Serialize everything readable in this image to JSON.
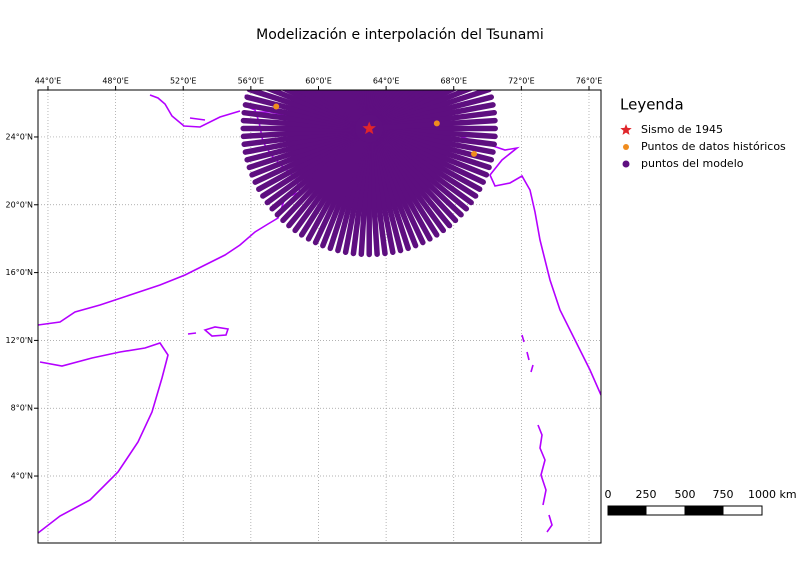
{
  "map": {
    "title": "Modelización e interpolación del Tsunami",
    "xlim": [
      43.41,
      76.71
    ],
    "ylim": [
      0.05,
      26.77
    ],
    "lon_ticks": [
      {
        "value": 44,
        "label": "44°0'E"
      },
      {
        "value": 48,
        "label": "48°0'E"
      },
      {
        "value": 52,
        "label": "52°0'E"
      },
      {
        "value": 56,
        "label": "56°0'E"
      },
      {
        "value": 60,
        "label": "60°0'E"
      },
      {
        "value": 64,
        "label": "64°0'E"
      },
      {
        "value": 68,
        "label": "68°0'E"
      },
      {
        "value": 72,
        "label": "72°0'E"
      },
      {
        "value": 76,
        "label": "76°0'E"
      }
    ],
    "lat_ticks": [
      {
        "value": 4,
        "label": "4°0'N"
      },
      {
        "value": 8,
        "label": "8°0'N"
      },
      {
        "value": 12,
        "label": "12°0'N"
      },
      {
        "value": 16,
        "label": "16°0'N"
      },
      {
        "value": 20,
        "label": "20°0'N"
      },
      {
        "value": 24,
        "label": "24°0'N"
      }
    ],
    "epicenter": {
      "lon": 63.0,
      "lat": 24.5
    },
    "historical_points": [
      {
        "lon": 57.5,
        "lat": 25.8
      },
      {
        "lon": 67.0,
        "lat": 24.8
      },
      {
        "lon": 69.2,
        "lat": 23.0
      }
    ],
    "legend": {
      "title": "Leyenda",
      "items": [
        "Sismo de 1945",
        "Puntos de datos históricos",
        "puntos del modelo"
      ]
    },
    "scale_bar": {
      "labels": [
        "0",
        "250",
        "500",
        "750",
        "1000 km"
      ]
    }
  }
}
